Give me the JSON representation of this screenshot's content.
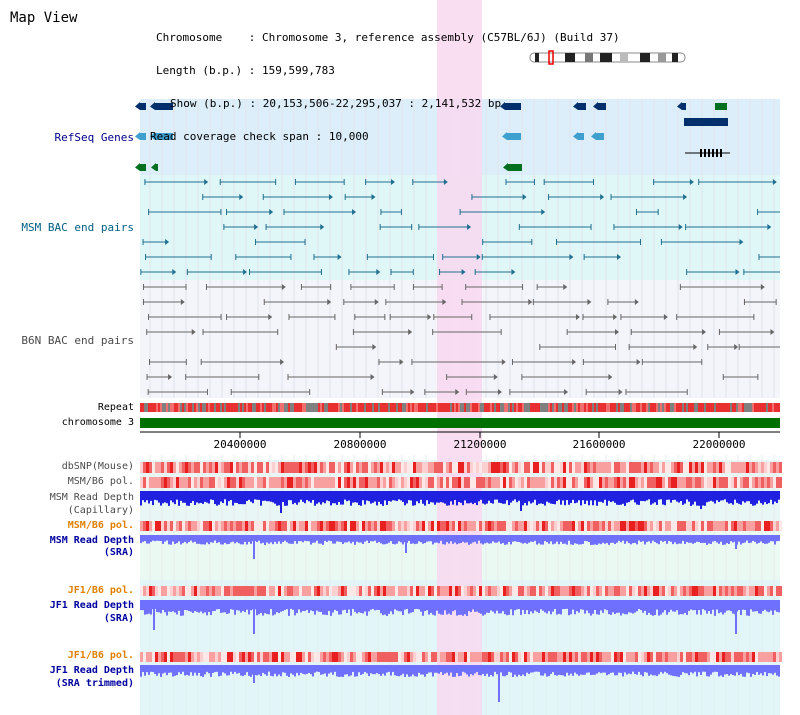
{
  "title": "Map View",
  "info": {
    "chromosome_label": "Chromosome",
    "chromosome_value": "Chromosome 3, reference assembly (C57BL/6J) (Build 37)",
    "length_label": "Length (b.p.)",
    "length_value": "159,599,783",
    "show_label": "Show (b.p.)",
    "show_value": "20,153,506-22,295,037 : 2,141,532 bp",
    "coverage_label": "Read coverage check span",
    "coverage_value": "10,000"
  },
  "tracks": {
    "refseq": "RefSeq Genes",
    "msm_bac": "MSM BAC end pairs",
    "b6n_bac": "B6N BAC end pairs",
    "repeat": "Repeat",
    "chromosome": "chromosome 3",
    "dbsnp": "dbSNP(Mouse)",
    "msm_b6_pol1": "MSM/B6 pol.",
    "msm_depth_cap_1": "MSM Read Depth",
    "msm_depth_cap_2": "(Capillary)",
    "msm_b6_pol2": "MSM/B6 pol.",
    "msm_depth_sra_1": "MSM Read Depth",
    "msm_depth_sra_2": "(SRA)",
    "jf1_b6_pol1": "JF1/B6 pol.",
    "jf1_depth_sra_1": "JF1 Read Depth",
    "jf1_depth_sra_2": "(SRA)",
    "jf1_b6_pol2": "JF1/B6 pol.",
    "jf1_depth_trim_1": "JF1 Read Depth",
    "jf1_depth_trim_2": "(SRA trimmed)"
  },
  "axis": {
    "ticks": [
      "20400000",
      "20800000",
      "21200000",
      "21600000",
      "22000000"
    ]
  },
  "colors": {
    "refseq_bg": "#dbeefa",
    "bac_bg": "#e0f7f7",
    "highlight": "#f8d8f0",
    "chromosome_bar": "#007000",
    "gene_dark": "#002f6c",
    "gene_light": "#3fa0d0",
    "gene_green": "#006f20",
    "bac_msm": "#1f6f8f",
    "bac_b6n": "#666666",
    "depth_capillary": "#2020e0",
    "depth_sra": "#7070ff"
  }
}
